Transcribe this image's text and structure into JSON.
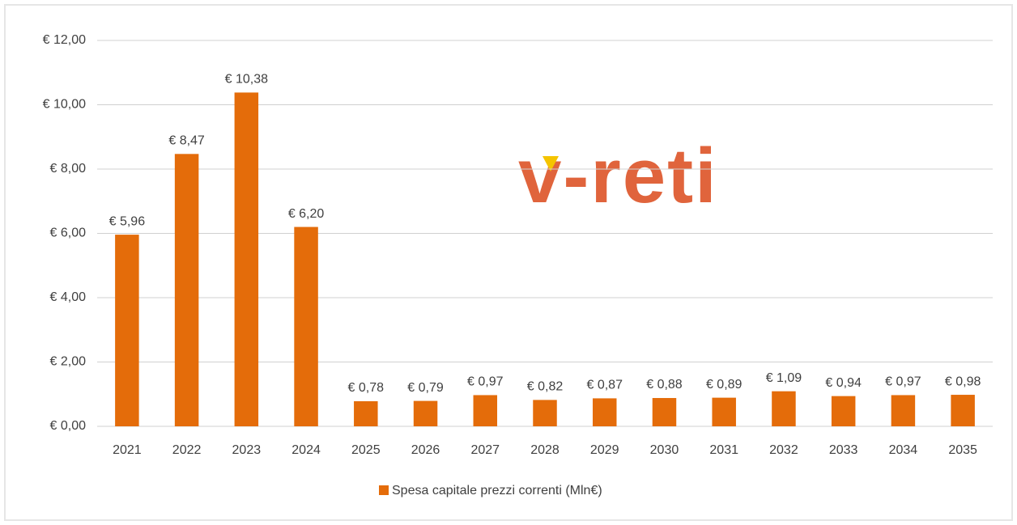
{
  "chart_data": {
    "type": "bar",
    "watermark": "v-reti",
    "categories": [
      "2021",
      "2022",
      "2023",
      "2024",
      "2025",
      "2026",
      "2027",
      "2028",
      "2029",
      "2030",
      "2031",
      "2032",
      "2033",
      "2034",
      "2035"
    ],
    "series": [
      {
        "name": "Spesa capitale prezzi correnti (Mln€)",
        "color": "#e46c0a",
        "values": [
          5.96,
          8.47,
          10.38,
          6.2,
          0.78,
          0.79,
          0.97,
          0.82,
          0.87,
          0.88,
          0.89,
          1.09,
          0.94,
          0.97,
          0.98
        ],
        "value_labels": [
          "€ 5,96",
          "€ 8,47",
          "€ 10,38",
          "€ 6,20",
          "€ 0,78",
          "€ 0,79",
          "€ 0,97",
          "€ 0,82",
          "€ 0,87",
          "€ 0,88",
          "€ 0,89",
          "€ 1,09",
          "€ 0,94",
          "€ 0,97",
          "€ 0,98"
        ]
      }
    ],
    "ylim": [
      0,
      12
    ],
    "yticks": [
      {
        "value": 0,
        "label": "€ 0,00"
      },
      {
        "value": 2,
        "label": "€ 2,00"
      },
      {
        "value": 4,
        "label": "€ 4,00"
      },
      {
        "value": 6,
        "label": "€ 6,00"
      },
      {
        "value": 8,
        "label": "€ 8,00"
      },
      {
        "value": 10,
        "label": "€ 10,00"
      },
      {
        "value": 12,
        "label": "€ 12,00"
      }
    ],
    "grid": true,
    "legend": "bottom"
  }
}
